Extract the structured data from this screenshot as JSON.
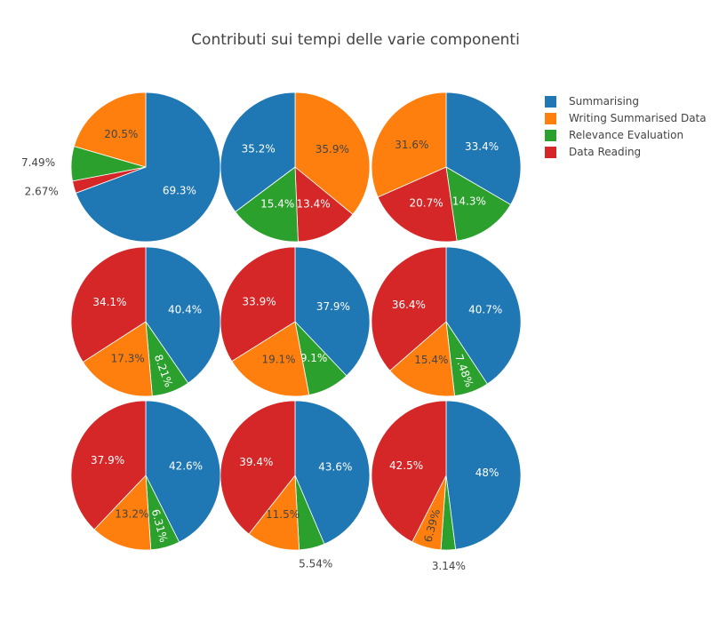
{
  "chart_data": {
    "type": "pie",
    "title": "Contributi sui tempi delle varie componenti",
    "legend_position": "top-right",
    "legend": [
      {
        "name": "Summarising",
        "color": "#1f77b4"
      },
      {
        "name": "Writing Summarised Data",
        "color": "#ff7f0e"
      },
      {
        "name": "Relevance Evaluation",
        "color": "#2ca02c"
      },
      {
        "name": "Data Reading",
        "color": "#d62728"
      }
    ],
    "pies": [
      {
        "slices": [
          {
            "name": "Summarising",
            "value": 69.3,
            "label": "69.3%"
          },
          {
            "name": "Data Reading",
            "value": 2.67,
            "label": "2.67%"
          },
          {
            "name": "Relevance Evaluation",
            "value": 7.49,
            "label": "7.49%"
          },
          {
            "name": "Writing Summarised Data",
            "value": 20.5,
            "label": "20.5%"
          }
        ]
      },
      {
        "slices": [
          {
            "name": "Writing Summarised Data",
            "value": 35.9,
            "label": "35.9%"
          },
          {
            "name": "Data Reading",
            "value": 13.4,
            "label": "13.4%"
          },
          {
            "name": "Relevance Evaluation",
            "value": 15.4,
            "label": "15.4%"
          },
          {
            "name": "Summarising",
            "value": 35.2,
            "label": "35.2%"
          }
        ]
      },
      {
        "slices": [
          {
            "name": "Summarising",
            "value": 33.4,
            "label": "33.4%"
          },
          {
            "name": "Relevance Evaluation",
            "value": 14.3,
            "label": "14.3%"
          },
          {
            "name": "Data Reading",
            "value": 20.7,
            "label": "20.7%"
          },
          {
            "name": "Writing Summarised Data",
            "value": 31.6,
            "label": "31.6%"
          }
        ]
      },
      {
        "slices": [
          {
            "name": "Summarising",
            "value": 40.4,
            "label": "40.4%"
          },
          {
            "name": "Relevance Evaluation",
            "value": 8.21,
            "label": "8.21%"
          },
          {
            "name": "Writing Summarised Data",
            "value": 17.3,
            "label": "17.3%"
          },
          {
            "name": "Data Reading",
            "value": 34.1,
            "label": "34.1%"
          }
        ]
      },
      {
        "slices": [
          {
            "name": "Summarising",
            "value": 37.9,
            "label": "37.9%"
          },
          {
            "name": "Relevance Evaluation",
            "value": 9.1,
            "label": "9.1%"
          },
          {
            "name": "Writing Summarised Data",
            "value": 19.1,
            "label": "19.1%"
          },
          {
            "name": "Data Reading",
            "value": 33.9,
            "label": "33.9%"
          }
        ]
      },
      {
        "slices": [
          {
            "name": "Summarising",
            "value": 40.7,
            "label": "40.7%"
          },
          {
            "name": "Relevance Evaluation",
            "value": 7.48,
            "label": "7.48%"
          },
          {
            "name": "Writing Summarised Data",
            "value": 15.4,
            "label": "15.4%"
          },
          {
            "name": "Data Reading",
            "value": 36.4,
            "label": "36.4%"
          }
        ]
      },
      {
        "slices": [
          {
            "name": "Summarising",
            "value": 42.6,
            "label": "42.6%"
          },
          {
            "name": "Relevance Evaluation",
            "value": 6.31,
            "label": "6.31%"
          },
          {
            "name": "Writing Summarised Data",
            "value": 13.2,
            "label": "13.2%"
          },
          {
            "name": "Data Reading",
            "value": 37.9,
            "label": "37.9%"
          }
        ]
      },
      {
        "slices": [
          {
            "name": "Summarising",
            "value": 43.6,
            "label": "43.6%"
          },
          {
            "name": "Relevance Evaluation",
            "value": 5.54,
            "label": "5.54%"
          },
          {
            "name": "Writing Summarised Data",
            "value": 11.5,
            "label": "11.5%"
          },
          {
            "name": "Data Reading",
            "value": 39.4,
            "label": "39.4%"
          }
        ]
      },
      {
        "slices": [
          {
            "name": "Summarising",
            "value": 48,
            "label": "48%"
          },
          {
            "name": "Relevance Evaluation",
            "value": 3.14,
            "label": "3.14%"
          },
          {
            "name": "Writing Summarised Data",
            "value": 6.39,
            "label": "6.39%"
          },
          {
            "name": "Data Reading",
            "value": 42.5,
            "label": "42.5%"
          }
        ]
      }
    ]
  }
}
